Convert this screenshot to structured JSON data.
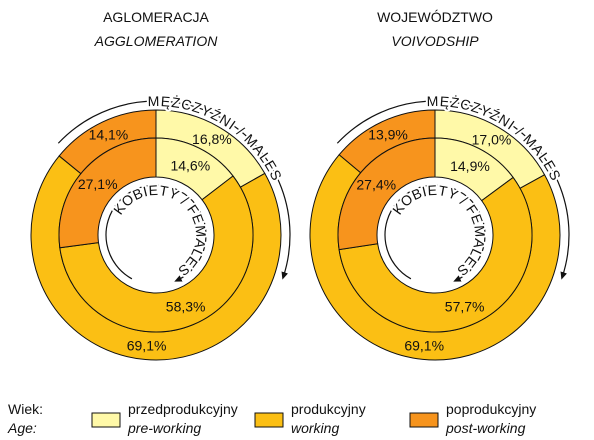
{
  "chart_data": [
    {
      "type": "pie",
      "title": "AGLOMERACJA",
      "subtitle": "AGGLOMERATION",
      "series": [
        {
          "name": "MĘŻCZYŹNI / MALES",
          "values": [
            16.8,
            69.1,
            14.1
          ],
          "value_labels": [
            "16,8%",
            "69,1%",
            "14,1%"
          ]
        },
        {
          "name": "KOBIETY / FEMALES",
          "values": [
            14.6,
            58.3,
            27.1
          ],
          "value_labels": [
            "14,6%",
            "58,3%",
            "27,1%"
          ]
        }
      ]
    },
    {
      "type": "pie",
      "title": "WOJEWÓDZTWO",
      "subtitle": "VOIVODSHIP",
      "series": [
        {
          "name": "MĘŻCZYŹNI / MALES",
          "values": [
            17.0,
            69.1,
            13.9
          ],
          "value_labels": [
            "17,0%",
            "69,1%",
            "13,9%"
          ]
        },
        {
          "name": "KOBIETY / FEMALES",
          "values": [
            14.9,
            57.7,
            27.4
          ],
          "value_labels": [
            "14,9%",
            "57,7%",
            "27,4%"
          ]
        }
      ]
    }
  ],
  "legend": {
    "title": "Wiek:",
    "title_en": "Age:",
    "items": [
      {
        "label": "przedprodukcyjny",
        "label_en": "pre-working",
        "color": "#fff9a8"
      },
      {
        "label": "produkcyjny",
        "label_en": "working",
        "color": "#fbbf14"
      },
      {
        "label": "poprodukcyjny",
        "label_en": "post-working",
        "color": "#f7941d"
      }
    ]
  }
}
